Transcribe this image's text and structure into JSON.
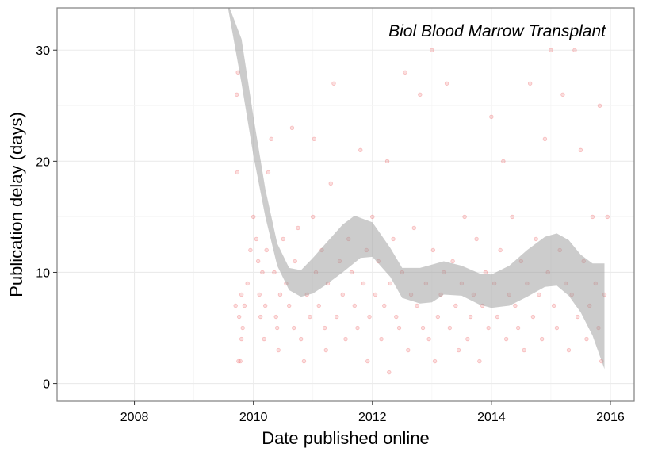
{
  "chart_data": {
    "type": "scatter",
    "annotation": "Biol Blood Marrow Transplant",
    "xlabel": "Date published online",
    "ylabel": "Publication delay (days)",
    "x_ticks": [
      "2008",
      "2010",
      "2012",
      "2014",
      "2016"
    ],
    "x_tick_values": [
      2008,
      2010,
      2012,
      2014,
      2016
    ],
    "y_ticks": [
      "0",
      "10",
      "20",
      "30"
    ],
    "y_tick_values": [
      0,
      10,
      20,
      30
    ],
    "xlim": [
      2006.7,
      2016.4
    ],
    "ylim": [
      -1.6,
      33.8
    ],
    "grid": true,
    "point_color": "#e41a1c",
    "point_alpha": 0.15,
    "band_color": "#999999",
    "panel_border": "#7f7f7f",
    "smooth_lower": [
      [
        2009.55,
        34.5
      ],
      [
        2009.8,
        27.0
      ],
      [
        2010.0,
        20.5
      ],
      [
        2010.2,
        15.0
      ],
      [
        2010.4,
        10.6
      ],
      [
        2010.6,
        8.4
      ],
      [
        2010.8,
        7.8
      ],
      [
        2011.0,
        8.1
      ],
      [
        2011.2,
        8.8
      ],
      [
        2011.5,
        10.0
      ],
      [
        2011.8,
        11.3
      ],
      [
        2012.0,
        11.4
      ],
      [
        2012.3,
        9.6
      ],
      [
        2012.5,
        7.7
      ],
      [
        2012.8,
        7.2
      ],
      [
        2013.0,
        7.3
      ],
      [
        2013.2,
        8.0
      ],
      [
        2013.5,
        7.9
      ],
      [
        2013.8,
        7.1
      ],
      [
        2014.0,
        6.8
      ],
      [
        2014.3,
        7.0
      ],
      [
        2014.6,
        7.8
      ],
      [
        2014.9,
        8.7
      ],
      [
        2015.1,
        8.8
      ],
      [
        2015.3,
        7.9
      ],
      [
        2015.5,
        6.4
      ],
      [
        2015.7,
        4.3
      ],
      [
        2015.9,
        1.3
      ]
    ],
    "smooth_upper": [
      [
        2009.55,
        34.5
      ],
      [
        2009.8,
        31.0
      ],
      [
        2010.0,
        24.0
      ],
      [
        2010.2,
        17.5
      ],
      [
        2010.4,
        12.6
      ],
      [
        2010.6,
        10.4
      ],
      [
        2010.8,
        10.2
      ],
      [
        2011.0,
        11.3
      ],
      [
        2011.2,
        12.5
      ],
      [
        2011.5,
        14.3
      ],
      [
        2011.7,
        15.1
      ],
      [
        2012.0,
        14.5
      ],
      [
        2012.3,
        12.2
      ],
      [
        2012.5,
        10.4
      ],
      [
        2012.8,
        10.4
      ],
      [
        2013.0,
        10.7
      ],
      [
        2013.2,
        11.0
      ],
      [
        2013.5,
        10.6
      ],
      [
        2013.8,
        9.9
      ],
      [
        2014.0,
        9.8
      ],
      [
        2014.3,
        10.6
      ],
      [
        2014.6,
        12.0
      ],
      [
        2014.9,
        13.2
      ],
      [
        2015.1,
        13.5
      ],
      [
        2015.3,
        12.9
      ],
      [
        2015.5,
        11.6
      ],
      [
        2015.7,
        10.8
      ],
      [
        2015.9,
        10.8
      ]
    ],
    "points": [
      [
        2009.72,
        26
      ],
      [
        2009.74,
        28
      ],
      [
        2009.73,
        19
      ],
      [
        2009.75,
        2
      ],
      [
        2009.78,
        2
      ],
      [
        2009.8,
        4
      ],
      [
        2009.7,
        7
      ],
      [
        2009.76,
        6
      ],
      [
        2009.8,
        8
      ],
      [
        2009.82,
        5
      ],
      [
        2009.85,
        7
      ],
      [
        2009.9,
        9
      ],
      [
        2009.95,
        12
      ],
      [
        2010.0,
        15
      ],
      [
        2010.05,
        13
      ],
      [
        2010.08,
        11
      ],
      [
        2010.1,
        8
      ],
      [
        2010.12,
        6
      ],
      [
        2010.15,
        10
      ],
      [
        2010.18,
        4
      ],
      [
        2010.2,
        7
      ],
      [
        2010.22,
        12
      ],
      [
        2010.25,
        19
      ],
      [
        2010.3,
        22
      ],
      [
        2010.35,
        10
      ],
      [
        2010.38,
        6
      ],
      [
        2010.4,
        5
      ],
      [
        2010.42,
        3
      ],
      [
        2010.45,
        8
      ],
      [
        2010.5,
        13
      ],
      [
        2010.55,
        9
      ],
      [
        2010.6,
        7
      ],
      [
        2010.65,
        23
      ],
      [
        2010.68,
        5
      ],
      [
        2010.7,
        11
      ],
      [
        2010.75,
        14
      ],
      [
        2010.8,
        4
      ],
      [
        2010.85,
        2
      ],
      [
        2010.9,
        8
      ],
      [
        2010.95,
        6
      ],
      [
        2011.0,
        15
      ],
      [
        2011.02,
        22
      ],
      [
        2011.05,
        10
      ],
      [
        2011.1,
        7
      ],
      [
        2011.15,
        12
      ],
      [
        2011.2,
        5
      ],
      [
        2011.22,
        3
      ],
      [
        2011.25,
        9
      ],
      [
        2011.3,
        18
      ],
      [
        2011.35,
        27
      ],
      [
        2011.4,
        6
      ],
      [
        2011.45,
        11
      ],
      [
        2011.5,
        8
      ],
      [
        2011.55,
        4
      ],
      [
        2011.6,
        13
      ],
      [
        2011.65,
        10
      ],
      [
        2011.7,
        7
      ],
      [
        2011.75,
        5
      ],
      [
        2011.8,
        21
      ],
      [
        2011.85,
        9
      ],
      [
        2011.9,
        12
      ],
      [
        2011.92,
        2
      ],
      [
        2011.95,
        6
      ],
      [
        2012.0,
        15
      ],
      [
        2012.05,
        8
      ],
      [
        2012.1,
        11
      ],
      [
        2012.15,
        4
      ],
      [
        2012.2,
        7
      ],
      [
        2012.25,
        20
      ],
      [
        2012.28,
        1
      ],
      [
        2012.3,
        9
      ],
      [
        2012.35,
        13
      ],
      [
        2012.4,
        6
      ],
      [
        2012.45,
        5
      ],
      [
        2012.5,
        10
      ],
      [
        2012.55,
        28
      ],
      [
        2012.6,
        3
      ],
      [
        2012.65,
        8
      ],
      [
        2012.7,
        14
      ],
      [
        2012.75,
        7
      ],
      [
        2012.8,
        26
      ],
      [
        2012.85,
        5
      ],
      [
        2012.9,
        9
      ],
      [
        2012.95,
        4
      ],
      [
        2013.0,
        30
      ],
      [
        2013.02,
        12
      ],
      [
        2013.05,
        2
      ],
      [
        2013.1,
        6
      ],
      [
        2013.15,
        8
      ],
      [
        2013.2,
        10
      ],
      [
        2013.25,
        27
      ],
      [
        2013.3,
        5
      ],
      [
        2013.35,
        11
      ],
      [
        2013.4,
        7
      ],
      [
        2013.45,
        3
      ],
      [
        2013.5,
        9
      ],
      [
        2013.55,
        15
      ],
      [
        2013.6,
        4
      ],
      [
        2013.65,
        6
      ],
      [
        2013.7,
        8
      ],
      [
        2013.75,
        13
      ],
      [
        2013.8,
        2
      ],
      [
        2013.85,
        7
      ],
      [
        2013.9,
        10
      ],
      [
        2013.95,
        5
      ],
      [
        2014.0,
        24
      ],
      [
        2014.05,
        9
      ],
      [
        2014.1,
        6
      ],
      [
        2014.15,
        12
      ],
      [
        2014.2,
        20
      ],
      [
        2014.25,
        4
      ],
      [
        2014.3,
        8
      ],
      [
        2014.35,
        15
      ],
      [
        2014.4,
        7
      ],
      [
        2014.45,
        5
      ],
      [
        2014.5,
        11
      ],
      [
        2014.55,
        3
      ],
      [
        2014.6,
        9
      ],
      [
        2014.65,
        27
      ],
      [
        2014.7,
        6
      ],
      [
        2014.75,
        13
      ],
      [
        2014.8,
        8
      ],
      [
        2014.85,
        4
      ],
      [
        2014.9,
        22
      ],
      [
        2014.95,
        10
      ],
      [
        2015.0,
        30
      ],
      [
        2015.05,
        7
      ],
      [
        2015.1,
        5
      ],
      [
        2015.15,
        12
      ],
      [
        2015.2,
        26
      ],
      [
        2015.25,
        9
      ],
      [
        2015.3,
        3
      ],
      [
        2015.35,
        8
      ],
      [
        2015.4,
        30
      ],
      [
        2015.45,
        6
      ],
      [
        2015.5,
        21
      ],
      [
        2015.55,
        11
      ],
      [
        2015.6,
        4
      ],
      [
        2015.65,
        7
      ],
      [
        2015.7,
        15
      ],
      [
        2015.75,
        9
      ],
      [
        2015.8,
        5
      ],
      [
        2015.82,
        25
      ],
      [
        2015.85,
        2
      ],
      [
        2015.9,
        8
      ],
      [
        2015.95,
        15
      ]
    ]
  }
}
